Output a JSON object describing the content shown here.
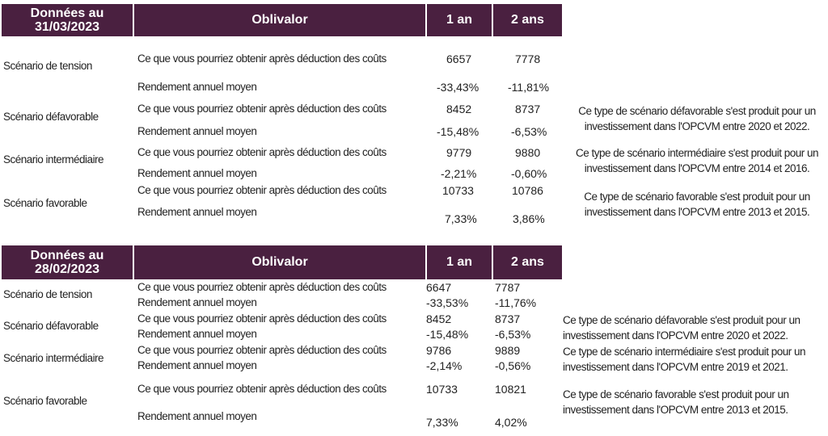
{
  "tables": [
    {
      "date_label": "Données au 31/03/2023",
      "col_product": "Oblivalor",
      "col_1y": "1 an",
      "col_2y": "2 ans",
      "scenarios": [
        {
          "name": "Scénario de tension",
          "row1_label": "Ce que vous pourriez obtenir après déduction des coûts",
          "row1_1y": "6657",
          "row1_2y": "7778",
          "row2_label": "Rendement annuel moyen",
          "row2_1y": "-33,43%",
          "row2_2y": "-11,81%",
          "note_line1": "",
          "note_line2": ""
        },
        {
          "name": "Scénario défavorable",
          "row1_label": "Ce que vous pourriez obtenir après déduction des coûts",
          "row1_1y": "8452",
          "row1_2y": "8737",
          "row2_label": "Rendement annuel moyen",
          "row2_1y": "-15,48%",
          "row2_2y": "-6,53%",
          "note_line1": "Ce type de scénario défavorable s'est produit pour un",
          "note_line2": "investissement dans l'OPCVM entre 2020 et 2022."
        },
        {
          "name": "Scénario intermédiaire",
          "row1_label": "Ce que vous pourriez obtenir après déduction des coûts",
          "row1_1y": "9779",
          "row1_2y": "9880",
          "row2_label": "Rendement annuel moyen",
          "row2_1y": "-2,21%",
          "row2_2y": "-0,60%",
          "note_line1": "Ce type de scénario intermédiaire s'est produit pour un",
          "note_line2": "investissement dans l'OPCVM entre 2014 et 2016."
        },
        {
          "name": "Scénario favorable",
          "row1_label": "Ce que vous pourriez obtenir après déduction des coûts",
          "row1_1y": "10733",
          "row1_2y": "10786",
          "row2_label": "Rendement annuel moyen",
          "row2_1y": "7,33%",
          "row2_2y": "3,86%",
          "note_line1": "Ce type de scénario favorable s'est produit pour un",
          "note_line2": "investissement dans l'OPCVM entre 2013 et 2015."
        }
      ]
    },
    {
      "date_label": "Données au 28/02/2023",
      "col_product": "Oblivalor",
      "col_1y": "1 an",
      "col_2y": "2 ans",
      "scenarios": [
        {
          "name": "Scénario de tension",
          "row1_label": "Ce que vous pourriez obtenir après déduction des coûts",
          "row1_1y": "6647",
          "row1_2y": "7787",
          "row2_label": "Rendement annuel moyen",
          "row2_1y": "-33,53%",
          "row2_2y": "-11,76%",
          "note_line1": "",
          "note_line2": ""
        },
        {
          "name": "Scénario défavorable",
          "row1_label": "Ce que vous pourriez obtenir après déduction des coûts",
          "row1_1y": "8452",
          "row1_2y": "8737",
          "row2_label": "Rendement annuel moyen",
          "row2_1y": "-15,48%",
          "row2_2y": "-6,53%",
          "note_line1": "Ce type de scénario défavorable s'est produit pour un",
          "note_line2": "investissement dans l'OPCVM entre 2020 et 2022."
        },
        {
          "name": "Scénario intermédiaire",
          "row1_label": "Ce que vous pourriez obtenir après déduction des coûts",
          "row1_1y": "9786",
          "row1_2y": "9889",
          "row2_label": "Rendement annuel moyen",
          "row2_1y": "-2,14%",
          "row2_2y": "-0,56%",
          "note_line1": "Ce type de scénario intermédiaire s'est produit pour un",
          "note_line2": "investissement dans l'OPCVM entre 2019 et 2021."
        },
        {
          "name": "Scénario favorable",
          "row1_label": "Ce que vous pourriez obtenir après déduction des coûts",
          "row1_1y": "10733",
          "row1_2y": "10821",
          "row2_label": "Rendement annuel moyen",
          "row2_1y": "7,33%",
          "row2_2y": "4,02%",
          "note_line1": "Ce type de scénario favorable s'est produit pour un",
          "note_line2": "investissement dans l'OPCVM entre 2013 et 2015."
        }
      ]
    }
  ]
}
